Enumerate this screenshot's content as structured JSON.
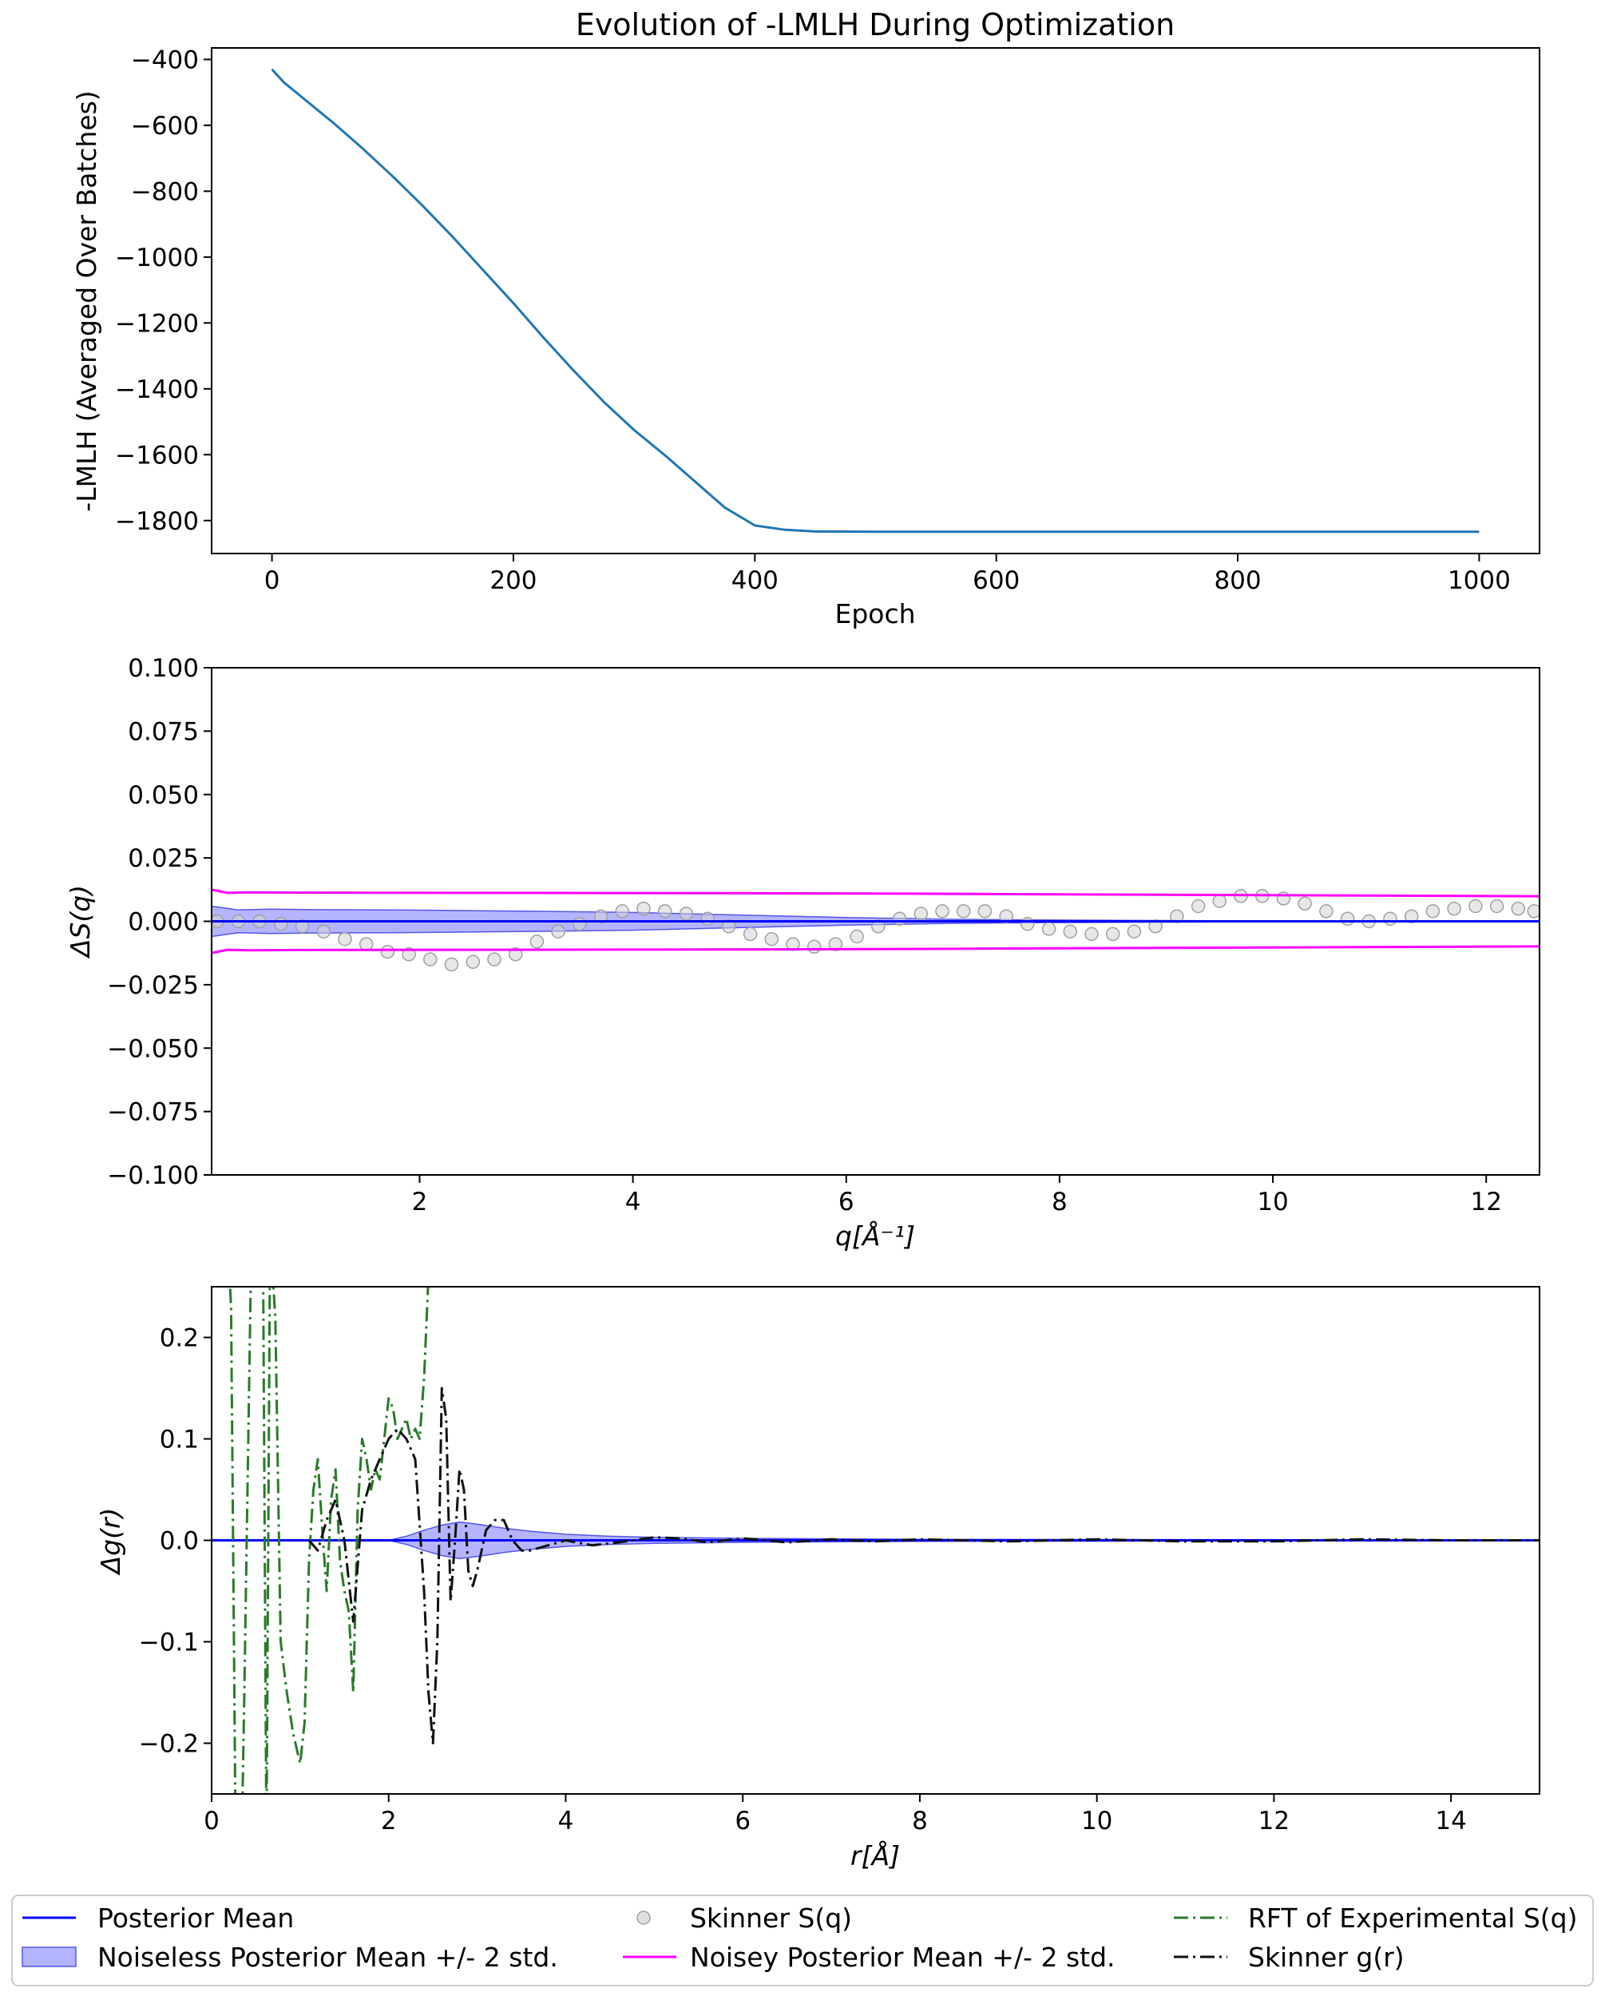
{
  "colors": {
    "loss": "#1f77b4",
    "mean": "#0000ff",
    "band_fill": "#9999ff",
    "band_edge": "#5555ee",
    "noisy": "#ff00ff",
    "skinner_sq_fill": "#d3d3d3",
    "skinner_sq_edge": "#a0a0a0",
    "rft": "#2a7a2a",
    "skinner_gr": "#111111"
  },
  "legend": {
    "entries": [
      {
        "key": "mean",
        "label": "Posterior Mean"
      },
      {
        "key": "band",
        "label": "Noiseless Posterior Mean +/- 2 std."
      },
      {
        "key": "skinner_sq",
        "label": "Skinner S(q)"
      },
      {
        "key": "noisy",
        "label": "Noisey Posterior Mean +/- 2 std."
      },
      {
        "key": "rft",
        "label": "RFT of Experimental S(q)"
      },
      {
        "key": "skinner_gr",
        "label": "Skinner g(r)"
      }
    ]
  },
  "chart_data": [
    {
      "type": "line",
      "title": "Evolution of -LMLH During Optimization",
      "xlabel": "Epoch",
      "ylabel": "-LMLH (Averaged Over Batches)",
      "xlim": [
        -50,
        1050
      ],
      "ylim": [
        -1900,
        -365
      ],
      "xticks": [
        0,
        200,
        400,
        600,
        800,
        1000
      ],
      "yticks": [
        -400,
        -600,
        -800,
        -1000,
        -1200,
        -1400,
        -1600,
        -1800
      ],
      "series": [
        {
          "name": "-LMLH",
          "color_key": "loss",
          "x": [
            0,
            10,
            25,
            50,
            75,
            100,
            125,
            150,
            175,
            200,
            225,
            250,
            275,
            300,
            325,
            350,
            375,
            400,
            425,
            450,
            500,
            600,
            700,
            800,
            900,
            1000
          ],
          "y": [
            -430,
            -470,
            -515,
            -590,
            -670,
            -755,
            -845,
            -940,
            -1040,
            -1140,
            -1245,
            -1345,
            -1440,
            -1525,
            -1600,
            -1680,
            -1760,
            -1815,
            -1828,
            -1833,
            -1834,
            -1834,
            -1834,
            -1834,
            -1834,
            -1834
          ]
        }
      ]
    },
    {
      "type": "line",
      "title": "",
      "xlabel": "q[Å⁻¹]",
      "ylabel": "ΔS(q)",
      "xlim": [
        0.05,
        12.5
      ],
      "ylim": [
        -0.1,
        0.1
      ],
      "xticks": [
        2,
        4,
        6,
        8,
        10,
        12
      ],
      "yticks": [
        0.1,
        0.075,
        0.05,
        0.025,
        0.0,
        -0.025,
        -0.05,
        -0.075,
        -0.1
      ],
      "ytick_labels": [
        "0.100",
        "0.075",
        "0.050",
        "0.025",
        "0.000",
        "−0.025",
        "−0.050",
        "−0.075",
        "−0.100"
      ],
      "series": [
        {
          "name": "Posterior Mean",
          "color_key": "mean",
          "x": [
            0.05,
            12.5
          ],
          "y": [
            0.0,
            0.0
          ]
        },
        {
          "name": "Noiseless Posterior Mean +/- 2 std.",
          "color_key": "band",
          "kind": "band",
          "x": [
            0.05,
            0.3,
            0.6,
            1.0,
            2.0,
            3.0,
            4.0,
            5.0,
            6.0,
            7.0,
            8.0,
            9.0,
            10.0,
            11.0,
            12.5
          ],
          "upper": [
            0.006,
            0.0045,
            0.0048,
            0.0046,
            0.0044,
            0.004,
            0.0035,
            0.0025,
            0.0015,
            0.0008,
            0.0005,
            0.0003,
            0.0002,
            0.0001,
            0.0001
          ],
          "lower": [
            -0.006,
            -0.0045,
            -0.0048,
            -0.0046,
            -0.0044,
            -0.004,
            -0.0035,
            -0.0025,
            -0.0015,
            -0.0008,
            -0.0005,
            -0.0003,
            -0.0002,
            -0.0001,
            -0.0001
          ]
        },
        {
          "name": "Noisey Posterior Mean +/- 2 std. (upper)",
          "color_key": "noisy",
          "x": [
            0.05,
            0.2,
            0.4,
            1.0,
            3.0,
            6.0,
            9.0,
            12.5
          ],
          "y": [
            0.0125,
            0.0112,
            0.0114,
            0.0113,
            0.0112,
            0.011,
            0.0105,
            0.0099
          ]
        },
        {
          "name": "Noisey Posterior Mean +/- 2 std. (lower)",
          "color_key": "noisy",
          "x": [
            0.05,
            0.2,
            0.4,
            1.0,
            3.0,
            6.0,
            9.0,
            12.5
          ],
          "y": [
            -0.0125,
            -0.0112,
            -0.0114,
            -0.0113,
            -0.0112,
            -0.011,
            -0.0105,
            -0.0099
          ]
        },
        {
          "name": "Skinner S(q)",
          "color_key": "skinner_sq",
          "kind": "scatter",
          "x": [
            0.1,
            0.3,
            0.5,
            0.7,
            0.9,
            1.1,
            1.3,
            1.5,
            1.7,
            1.9,
            2.1,
            2.3,
            2.5,
            2.7,
            2.9,
            3.1,
            3.3,
            3.5,
            3.7,
            3.9,
            4.1,
            4.3,
            4.5,
            4.7,
            4.9,
            5.1,
            5.3,
            5.5,
            5.7,
            5.9,
            6.1,
            6.3,
            6.5,
            6.7,
            6.9,
            7.1,
            7.3,
            7.5,
            7.7,
            7.9,
            8.1,
            8.3,
            8.5,
            8.7,
            8.9,
            9.1,
            9.3,
            9.5,
            9.7,
            9.9,
            10.1,
            10.3,
            10.5,
            10.7,
            10.9,
            11.1,
            11.3,
            11.5,
            11.7,
            11.9,
            12.1,
            12.3,
            12.45
          ],
          "y": [
            0.0,
            0.0,
            0.0,
            -0.001,
            -0.002,
            -0.004,
            -0.007,
            -0.009,
            -0.012,
            -0.013,
            -0.015,
            -0.017,
            -0.016,
            -0.015,
            -0.013,
            -0.008,
            -0.004,
            -0.001,
            0.002,
            0.004,
            0.005,
            0.004,
            0.003,
            0.001,
            -0.002,
            -0.005,
            -0.007,
            -0.009,
            -0.01,
            -0.009,
            -0.006,
            -0.002,
            0.001,
            0.003,
            0.004,
            0.004,
            0.004,
            0.002,
            -0.001,
            -0.003,
            -0.004,
            -0.005,
            -0.005,
            -0.004,
            -0.002,
            0.002,
            0.006,
            0.008,
            0.01,
            0.01,
            0.009,
            0.007,
            0.004,
            0.001,
            0.0,
            0.001,
            0.002,
            0.004,
            0.005,
            0.006,
            0.006,
            0.005,
            0.004
          ]
        }
      ]
    },
    {
      "type": "line",
      "title": "",
      "xlabel": "r[Å]",
      "ylabel": "Δg(r)",
      "xlim": [
        0,
        15
      ],
      "ylim": [
        -0.25,
        0.25
      ],
      "xticks": [
        0,
        2,
        4,
        6,
        8,
        10,
        12,
        14
      ],
      "yticks": [
        0.2,
        0.1,
        0.0,
        -0.1,
        -0.2
      ],
      "ytick_labels": [
        "0.2",
        "0.1",
        "0.0",
        "−0.1",
        "−0.2"
      ],
      "series": [
        {
          "name": "Posterior Mean",
          "color_key": "mean",
          "x": [
            0,
            15
          ],
          "y": [
            0.0,
            0.0
          ]
        },
        {
          "name": "Noiseless Posterior Mean +/- 2 std.",
          "color_key": "band",
          "kind": "band",
          "x": [
            2.0,
            2.2,
            2.4,
            2.6,
            2.8,
            3.0,
            3.3,
            3.6,
            4.0,
            4.5,
            5.0,
            6.0,
            7.0,
            8.0,
            10.0,
            15.0
          ],
          "upper": [
            0.0,
            0.004,
            0.01,
            0.015,
            0.018,
            0.016,
            0.012,
            0.009,
            0.006,
            0.004,
            0.003,
            0.002,
            0.0015,
            0.001,
            0.0008,
            0.0005
          ],
          "lower": [
            0.0,
            -0.004,
            -0.01,
            -0.015,
            -0.018,
            -0.016,
            -0.012,
            -0.009,
            -0.006,
            -0.004,
            -0.003,
            -0.002,
            -0.0015,
            -0.001,
            -0.0008,
            -0.0005
          ]
        },
        {
          "name": "RFT of Experimental S(q)",
          "color_key": "rft",
          "dash": "dashdot",
          "x": [
            0.18,
            0.22,
            0.27,
            0.32,
            0.37,
            0.45,
            0.52,
            0.58,
            0.62,
            0.66,
            0.72,
            0.78,
            0.85,
            0.92,
            1.0,
            1.05,
            1.1,
            1.15,
            1.2,
            1.25,
            1.3,
            1.35,
            1.4,
            1.45,
            1.5,
            1.55,
            1.6,
            1.65,
            1.7,
            1.75,
            1.8,
            1.85,
            1.9,
            1.95,
            2.0,
            2.05,
            2.1,
            2.15,
            2.2,
            2.25,
            2.3,
            2.35,
            2.4,
            2.45,
            2.5,
            2.55
          ],
          "y": [
            0.3,
            0.23,
            -0.28,
            -0.4,
            -0.15,
            0.3,
            0.4,
            0.3,
            -0.3,
            0.3,
            0.22,
            -0.1,
            -0.15,
            -0.19,
            -0.22,
            -0.18,
            -0.02,
            0.05,
            0.08,
            0.01,
            -0.05,
            0.04,
            0.07,
            -0.02,
            -0.05,
            -0.07,
            -0.15,
            0.03,
            0.1,
            0.08,
            0.05,
            0.07,
            0.06,
            0.1,
            0.14,
            0.13,
            0.1,
            0.11,
            0.12,
            0.1,
            0.11,
            0.1,
            0.16,
            0.26,
            0.3,
            0.3
          ]
        },
        {
          "name": "Skinner g(r)",
          "color_key": "skinner_gr",
          "dash": "dashdot",
          "x": [
            1.1,
            1.2,
            1.3,
            1.4,
            1.5,
            1.55,
            1.6,
            1.7,
            1.8,
            1.9,
            2.0,
            2.1,
            2.2,
            2.3,
            2.4,
            2.45,
            2.5,
            2.55,
            2.6,
            2.65,
            2.7,
            2.75,
            2.8,
            2.85,
            2.9,
            2.95,
            3.0,
            3.1,
            3.2,
            3.3,
            3.4,
            3.5,
            3.6,
            3.8,
            4.0,
            4.3,
            4.6,
            5.0,
            5.3,
            5.6,
            6.0,
            6.5,
            7.0,
            7.5,
            8.0,
            9.0,
            10.0,
            11.0,
            12.0,
            13.0,
            14.0,
            15.0
          ],
          "y": [
            0.0,
            -0.01,
            0.02,
            0.04,
            0.0,
            -0.04,
            -0.08,
            0.03,
            0.06,
            0.08,
            0.1,
            0.11,
            0.1,
            0.08,
            -0.05,
            -0.15,
            -0.2,
            -0.1,
            0.15,
            0.12,
            -0.06,
            0.0,
            0.07,
            0.05,
            -0.03,
            -0.045,
            -0.03,
            0.01,
            0.02,
            0.02,
            0.0,
            -0.01,
            -0.01,
            -0.005,
            0.0,
            -0.005,
            -0.002,
            0.003,
            0.002,
            -0.002,
            0.002,
            -0.002,
            0.001,
            -0.001,
            0.001,
            -0.001,
            0.001,
            -0.001,
            -0.001,
            0.001,
            0.0,
            0.0
          ]
        }
      ]
    }
  ]
}
